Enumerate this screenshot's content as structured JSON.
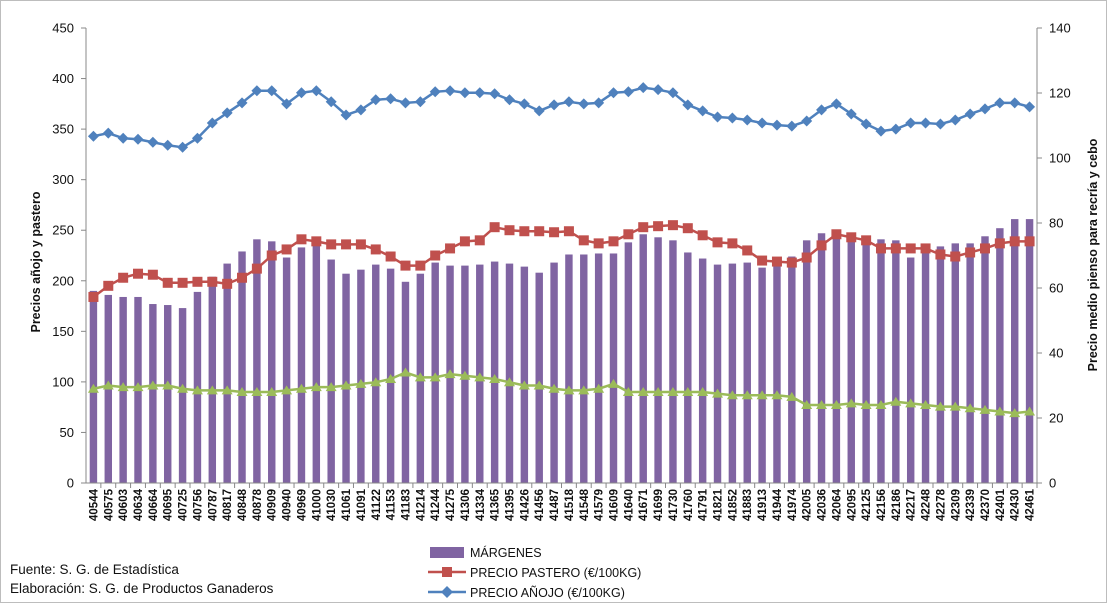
{
  "chart_data": {
    "type": "bar+line",
    "title": "",
    "y_left_label": "Precios añojo y pastero",
    "y_right_label": "Precio medio pienso para recría y cebo",
    "y_left_lim": [
      0,
      450
    ],
    "y_right_lim": [
      0,
      140
    ],
    "y_left_ticks": [
      "0",
      "50",
      "100",
      "150",
      "200",
      "250",
      "300",
      "350",
      "400",
      "450"
    ],
    "y_right_ticks": [
      "0",
      "20",
      "40",
      "60",
      "80",
      "100",
      "120",
      "140"
    ],
    "grid": false,
    "legend_position": "bottom",
    "x": [
      "40544",
      "40575",
      "40603",
      "40634",
      "40664",
      "40695",
      "40725",
      "40756",
      "40787",
      "40817",
      "40848",
      "40878",
      "40909",
      "40940",
      "40969",
      "41000",
      "41030",
      "41061",
      "41091",
      "41122",
      "41153",
      "41183",
      "41214",
      "41244",
      "41275",
      "41306",
      "41334",
      "41365",
      "41395",
      "41426",
      "41456",
      "41487",
      "41518",
      "41548",
      "41579",
      "41609",
      "41640",
      "41671",
      "41699",
      "41730",
      "41760",
      "41791",
      "41821",
      "41852",
      "41883",
      "41913",
      "41944",
      "41974",
      "42005",
      "42036",
      "42064",
      "42095",
      "42125",
      "42156",
      "42186",
      "42217",
      "42248",
      "42278",
      "42309",
      "42339",
      "42370",
      "42401",
      "42430",
      "42461"
    ],
    "x_tick_labels": [
      "40544",
      "40575",
      "40603",
      "40634",
      "40664",
      "40695",
      "40725",
      "40756",
      "40787",
      "40817",
      "40848",
      "40878",
      "40909",
      "40940",
      "40969",
      "41000",
      "41030",
      "41061",
      "41091",
      "41122",
      "41153",
      "41183",
      "41214",
      "41244",
      "41275",
      "41306",
      "41334",
      "41365",
      "41395",
      "41426",
      "41456",
      "41487",
      "41518",
      "41548",
      "41579",
      "41609",
      "41640",
      "41671",
      "41699",
      "41730",
      "41760",
      "41791",
      "41821",
      "41852",
      "41883",
      "41913",
      "41944",
      "41974",
      "42005",
      "42036",
      "42064",
      "42095",
      "42125",
      "42156",
      "42186",
      "42217",
      "42248",
      "42278",
      "42309",
      "42339",
      "42370",
      "42401",
      "42430",
      "42461"
    ],
    "series": [
      {
        "name": "MÁRGENES",
        "kind": "bar",
        "axis": "left",
        "color": "#8064a2",
        "values": [
          190,
          186,
          184,
          184,
          177,
          176,
          173,
          189,
          204,
          217,
          229,
          241,
          239,
          223,
          233,
          241,
          221,
          207,
          211,
          216,
          212,
          199,
          207,
          218,
          215,
          215,
          216,
          219,
          217,
          214,
          208,
          218,
          226,
          226,
          227,
          227,
          238,
          246,
          243,
          240,
          228,
          222,
          216,
          217,
          218,
          213,
          218,
          224,
          240,
          247,
          247,
          245,
          243,
          241,
          240,
          223,
          231,
          234,
          237,
          237,
          244,
          252,
          261,
          261
        ]
      },
      {
        "name": "PRECIO PASTERO (€/100KG)",
        "kind": "line",
        "axis": "left",
        "color": "#c0504d",
        "marker": "square",
        "values": [
          184,
          195,
          203,
          207,
          206,
          198,
          198,
          199,
          199,
          197,
          203,
          212,
          225,
          231,
          241,
          239,
          236,
          236,
          236,
          231,
          224,
          215,
          215,
          225,
          232,
          239,
          240,
          253,
          250,
          249,
          249,
          248,
          249,
          240,
          237,
          239,
          246,
          253,
          254,
          255,
          252,
          245,
          238,
          237,
          230,
          220,
          219,
          218,
          223,
          235,
          246,
          243,
          240,
          232,
          232,
          232,
          232,
          226,
          224,
          228,
          232,
          237,
          239,
          239
        ]
      },
      {
        "name": "PRECIO AÑOJO (€/100KG)",
        "kind": "line",
        "axis": "left",
        "color": "#4f81bd",
        "marker": "diamond",
        "values": [
          343,
          346,
          341,
          340,
          337,
          334,
          332,
          341,
          356,
          366,
          376,
          388,
          388,
          375,
          386,
          388,
          377,
          364,
          369,
          379,
          380,
          376,
          377,
          387,
          388,
          386,
          386,
          385,
          379,
          375,
          368,
          374,
          377,
          375,
          376,
          386,
          387,
          391,
          389,
          386,
          374,
          368,
          362,
          361,
          359,
          356,
          354,
          353,
          358,
          369,
          375,
          365,
          355,
          348,
          350,
          356,
          356,
          355,
          359,
          365,
          370,
          376,
          376,
          372
        ]
      },
      {
        "name": "",
        "kind": "line",
        "axis": "right",
        "color": "#9bbb59",
        "marker": "triangle",
        "values": [
          29,
          30,
          29.5,
          29.5,
          30,
          30,
          29,
          28.5,
          28.5,
          28.5,
          28,
          28,
          28,
          28.5,
          29,
          29.5,
          29.5,
          30,
          30.5,
          31,
          32,
          34,
          32.5,
          32.5,
          33.5,
          33,
          32.5,
          32,
          31,
          30,
          30,
          29,
          28.5,
          28.5,
          29,
          30.5,
          28,
          28,
          28,
          28,
          28,
          28,
          27.5,
          27,
          27,
          27,
          27,
          26.5,
          24,
          24,
          24,
          24.5,
          24,
          24,
          25,
          24.5,
          24,
          23.5,
          23.5,
          23,
          22.5,
          22,
          21.5,
          22
        ]
      }
    ],
    "legend": [
      "MÁRGENES",
      "PRECIO PASTERO (€/100KG)",
      "PRECIO AÑOJO (€/100KG)"
    ]
  },
  "footer": {
    "source": "Fuente: S. G. de Estadística",
    "elaboration": "Elaboración: S. G. de Productos Ganaderos"
  }
}
